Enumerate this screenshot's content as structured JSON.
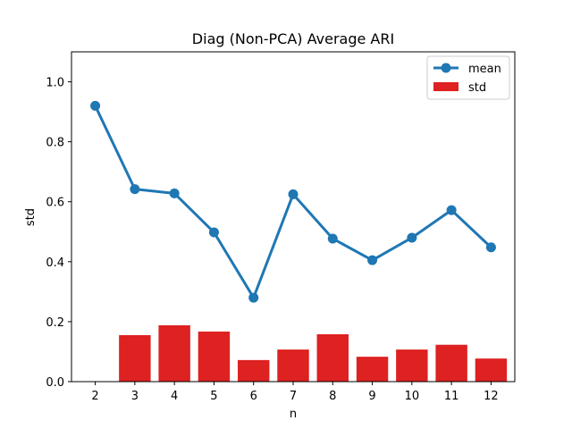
{
  "chart_data": {
    "type": "bar",
    "title": "Diag (Non-PCA) Average ARI",
    "xlabel": "n",
    "ylabel": "std",
    "categories": [
      "2",
      "3",
      "4",
      "5",
      "6",
      "7",
      "8",
      "9",
      "10",
      "11",
      "12"
    ],
    "ylim": [
      0,
      1.1
    ],
    "yticks": [
      "0.0",
      "0.2",
      "0.4",
      "0.6",
      "0.8",
      "1.0"
    ],
    "series": [
      {
        "name": "mean",
        "type": "line",
        "color": "#1f77b4",
        "values": [
          0.92,
          0.642,
          0.628,
          0.498,
          0.28,
          0.625,
          0.477,
          0.405,
          0.48,
          0.572,
          0.448
        ]
      },
      {
        "name": "std",
        "type": "bar",
        "color": "#de2121",
        "values": [
          0.0,
          0.155,
          0.188,
          0.167,
          0.072,
          0.107,
          0.158,
          0.083,
          0.107,
          0.123,
          0.077
        ]
      }
    ],
    "legend": "top-right",
    "grid": false
  }
}
